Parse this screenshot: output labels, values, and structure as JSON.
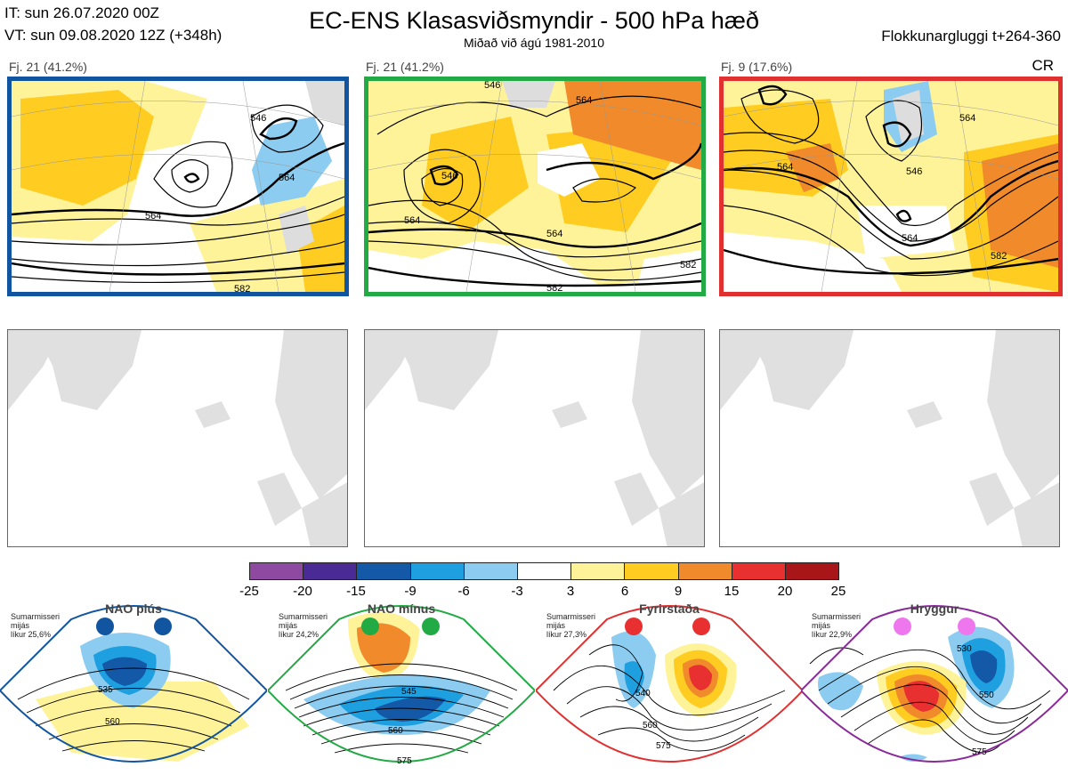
{
  "header": {
    "initial_time": "IT: sun 26.07.2020 00Z",
    "valid_time": "VT: sun 09.08.2020 12Z  (+348h)",
    "title": "EC-ENS Klasasviðsmyndir - 500 hPa hæð",
    "subtitle": "Miðað við ágú 1981-2010",
    "window": "Flokkunargluggi t+264-360",
    "cr_label": "CR"
  },
  "clusters": [
    {
      "label": "Fj. 21 (41.2%)",
      "border_color": "#1155a0",
      "contours": [
        "546",
        "564",
        "564",
        "582"
      ]
    },
    {
      "label": "Fj. 21 (41.2%)",
      "border_color": "#22aa44",
      "contours": [
        "546",
        "564",
        "564",
        "582",
        "582",
        "546",
        "564"
      ]
    },
    {
      "label": "Fj. 9 (17.6%)",
      "border_color": "#e03030",
      "contours": [
        "564",
        "564",
        "546",
        "564",
        "582"
      ]
    }
  ],
  "colorbar": {
    "colors": [
      "#8e4aa0",
      "#4a2a94",
      "#1458a8",
      "#1ea0e0",
      "#8cccf0",
      "#ffffff",
      "#fff39a",
      "#ffcc22",
      "#f08a2a",
      "#e83030",
      "#a8161a"
    ],
    "ticks": [
      "-25",
      "-20",
      "-15",
      "-9",
      "-6",
      "-3",
      "3",
      "6",
      "9",
      "15",
      "20",
      "25"
    ]
  },
  "regimes": [
    {
      "name": "NAO plús",
      "season": "Sumarmisseri",
      "word": "mijás",
      "prob": "líkur 25,6%",
      "border_color": "#1155a0",
      "dot_color": "#1155a0",
      "contours": [
        "535",
        "560"
      ]
    },
    {
      "name": "NAO mínus",
      "season": "Sumarmisseri",
      "word": "mijás",
      "prob": "líkur 24,2%",
      "border_color": "#22aa44",
      "dot_color": "#22aa44",
      "contours": [
        "545",
        "560",
        "575"
      ]
    },
    {
      "name": "Fyrirstaða",
      "season": "Sumarmisseri",
      "word": "mijás",
      "prob": "líkur 27,3%",
      "border_color": "#e03030",
      "dot_color": "#e83030",
      "contours": [
        "540",
        "560",
        "575"
      ]
    },
    {
      "name": "Hryggur",
      "season": "Sumarmisseri",
      "word": "mijás",
      "prob": "líkur 22,9%",
      "border_color": "#8a2a9a",
      "dot_color": "#ee77ee",
      "contours": [
        "530",
        "550",
        "575"
      ]
    }
  ]
}
